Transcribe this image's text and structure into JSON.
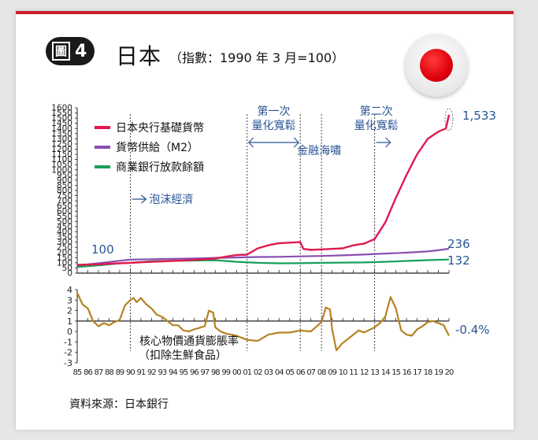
{
  "figure_badge": {
    "prefix": "圖",
    "number": "4"
  },
  "title": "日本",
  "subtitle": "（指數：1990 年 3 月=100）",
  "source": "資料來源：日本銀行",
  "colors": {
    "monetary_base": "#e0194f",
    "m2": "#8a4fb0",
    "bank_lending": "#17a05a",
    "cpi": "#b58322",
    "annotation": "#2a5596",
    "accent": "#c8202b"
  },
  "chart_data": [
    {
      "type": "line",
      "x_unit": "year",
      "x_tick_labels": [
        "85",
        "86",
        "87",
        "88",
        "89",
        "90",
        "91",
        "92",
        "93",
        "94",
        "95",
        "96",
        "97",
        "98",
        "99",
        "00",
        "01",
        "02",
        "03",
        "04",
        "05",
        "06",
        "07",
        "08",
        "09",
        "10",
        "11",
        "12",
        "13",
        "14",
        "15",
        "16",
        "17",
        "18",
        "19",
        "20"
      ],
      "ylim": [
        0,
        1600
      ],
      "y_ticks": [
        0,
        50,
        100,
        150,
        200,
        250,
        300,
        350,
        400,
        450,
        500,
        550,
        600,
        650,
        700,
        750,
        800,
        850,
        900,
        950,
        1000,
        1050,
        1100,
        1150,
        1200,
        1250,
        1300,
        1350,
        1400,
        1450,
        1500,
        1550,
        1600
      ],
      "series": [
        {
          "name": "日本央行基礎貨幣",
          "key": "monetary_base",
          "end_label": "1,533",
          "points": [
            [
              1985,
              80
            ],
            [
              1987,
              85
            ],
            [
              1989,
              95
            ],
            [
              1990,
              100
            ],
            [
              1992,
              110
            ],
            [
              1994,
              118
            ],
            [
              1996,
              128
            ],
            [
              1998,
              140
            ],
            [
              1999,
              160
            ],
            [
              2000,
              175
            ],
            [
              2001,
              180
            ],
            [
              2002,
              240
            ],
            [
              2003,
              270
            ],
            [
              2004,
              290
            ],
            [
              2005,
              295
            ],
            [
              2006,
              300
            ],
            [
              2006.3,
              235
            ],
            [
              2007,
              225
            ],
            [
              2008,
              230
            ],
            [
              2009,
              235
            ],
            [
              2010,
              240
            ],
            [
              2011,
              270
            ],
            [
              2012,
              285
            ],
            [
              2013,
              330
            ],
            [
              2014,
              490
            ],
            [
              2015,
              730
            ],
            [
              2016,
              950
            ],
            [
              2017,
              1150
            ],
            [
              2018,
              1300
            ],
            [
              2019,
              1370
            ],
            [
              2019.7,
              1400
            ],
            [
              2020,
              1533
            ]
          ]
        },
        {
          "name": "貨幣供給（M2）",
          "key": "m2",
          "end_label": "236",
          "points": [
            [
              1985,
              75
            ],
            [
              1987,
              95
            ],
            [
              1989,
              120
            ],
            [
              1990,
              130
            ],
            [
              1992,
              135
            ],
            [
              1994,
              138
            ],
            [
              1996,
              142
            ],
            [
              1998,
              148
            ],
            [
              2000,
              152
            ],
            [
              2002,
              156
            ],
            [
              2004,
              158
            ],
            [
              2006,
              162
            ],
            [
              2008,
              166
            ],
            [
              2010,
              172
            ],
            [
              2012,
              180
            ],
            [
              2014,
              190
            ],
            [
              2016,
              198
            ],
            [
              2018,
              210
            ],
            [
              2019,
              222
            ],
            [
              2020,
              236
            ]
          ]
        },
        {
          "name": "商業銀行放款餘額",
          "key": "bank_lending",
          "end_label": "132",
          "points": [
            [
              1985,
              60
            ],
            [
              1987,
              75
            ],
            [
              1989,
              95
            ],
            [
              1990,
              100
            ],
            [
              1992,
              115
            ],
            [
              1994,
              120
            ],
            [
              1996,
              122
            ],
            [
              1998,
              124
            ],
            [
              1999,
              118
            ],
            [
              2000,
              110
            ],
            [
              2002,
              100
            ],
            [
              2004,
              95
            ],
            [
              2006,
              96
            ],
            [
              2008,
              100
            ],
            [
              2010,
              102
            ],
            [
              2012,
              104
            ],
            [
              2014,
              110
            ],
            [
              2016,
              118
            ],
            [
              2018,
              126
            ],
            [
              2020,
              132
            ]
          ]
        }
      ],
      "start_label": "100",
      "annotations": [
        {
          "text": "泡沫經濟",
          "year": 1990
        },
        {
          "text": "第一次",
          "text2": "量化寬鬆",
          "from_year": 2001,
          "to_year": 2006
        },
        {
          "text": "金融海嘯",
          "year": 2008
        },
        {
          "text": "第二次",
          "text2": "量化寬鬆",
          "from_year": 2013
        }
      ]
    },
    {
      "type": "line",
      "ylim": [
        -3,
        4
      ],
      "y_ticks": [
        4,
        3,
        2,
        1,
        0,
        -1,
        -2,
        -3
      ],
      "series": [
        {
          "name": "核心物價通貨膨脹率",
          "note": "（扣除生鮮食品）",
          "key": "cpi",
          "end_label": "-0.4%",
          "points": [
            [
              1985,
              3.7
            ],
            [
              1985.5,
              2.6
            ],
            [
              1986,
              2.2
            ],
            [
              1986.5,
              1.0
            ],
            [
              1987,
              0.5
            ],
            [
              1987.5,
              0.8
            ],
            [
              1988,
              0.6
            ],
            [
              1988.5,
              0.9
            ],
            [
              1989,
              1.1
            ],
            [
              1989.5,
              2.5
            ],
            [
              1990,
              3.0
            ],
            [
              1990.3,
              3.2
            ],
            [
              1990.6,
              2.8
            ],
            [
              1991,
              3.2
            ],
            [
              1991.5,
              2.6
            ],
            [
              1992,
              2.2
            ],
            [
              1992.5,
              1.6
            ],
            [
              1993,
              1.4
            ],
            [
              1993.5,
              1.0
            ],
            [
              1994,
              0.6
            ],
            [
              1994.5,
              0.6
            ],
            [
              1995,
              0.1
            ],
            [
              1995.5,
              0.0
            ],
            [
              1996,
              0.2
            ],
            [
              1997,
              0.5
            ],
            [
              1997.4,
              2.0
            ],
            [
              1997.8,
              1.8
            ],
            [
              1998,
              0.4
            ],
            [
              1998.5,
              0.0
            ],
            [
              1999,
              -0.2
            ],
            [
              2000,
              -0.4
            ],
            [
              2001,
              -0.8
            ],
            [
              2002,
              -0.9
            ],
            [
              2003,
              -0.3
            ],
            [
              2004,
              -0.1
            ],
            [
              2005,
              -0.1
            ],
            [
              2006,
              0.1
            ],
            [
              2007,
              0.0
            ],
            [
              2008,
              0.9
            ],
            [
              2008.4,
              2.3
            ],
            [
              2008.8,
              2.1
            ],
            [
              2009,
              0.2
            ],
            [
              2009.4,
              -1.8
            ],
            [
              2009.9,
              -1.2
            ],
            [
              2010,
              -1.1
            ],
            [
              2011,
              -0.3
            ],
            [
              2011.5,
              0.1
            ],
            [
              2012,
              -0.1
            ],
            [
              2013,
              0.4
            ],
            [
              2013.5,
              0.8
            ],
            [
              2014,
              1.4
            ],
            [
              2014.5,
              3.3
            ],
            [
              2015,
              2.2
            ],
            [
              2015.5,
              0.1
            ],
            [
              2016,
              -0.3
            ],
            [
              2016.5,
              -0.4
            ],
            [
              2017,
              0.2
            ],
            [
              2017.5,
              0.5
            ],
            [
              2018,
              0.9
            ],
            [
              2018.5,
              1.0
            ],
            [
              2019,
              0.8
            ],
            [
              2019.5,
              0.6
            ],
            [
              2020,
              -0.4
            ]
          ]
        }
      ]
    }
  ]
}
